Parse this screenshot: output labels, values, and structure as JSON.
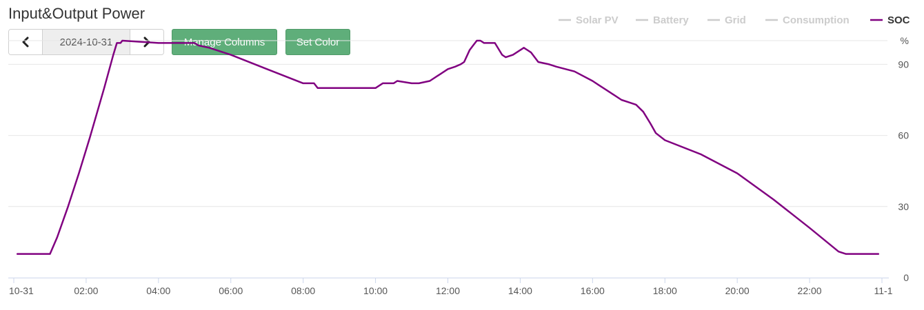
{
  "title": "Input&Output Power",
  "date_nav": {
    "prev_icon": "chevron-left-icon",
    "date": "2024-10-31",
    "next_icon": "chevron-right-icon"
  },
  "buttons": {
    "manage_columns": "Manage Columns",
    "set_color": "Set Color",
    "color": "#5fae7a"
  },
  "chart_data": {
    "type": "line",
    "title": "",
    "xlabel": "",
    "ylabel": "%",
    "ylim": [
      0,
      100
    ],
    "y_ticks": [
      0,
      30,
      60,
      90
    ],
    "x_tick_labels": [
      "10-31",
      "02:00",
      "04:00",
      "06:00",
      "08:00",
      "10:00",
      "12:00",
      "14:00",
      "16:00",
      "18:00",
      "20:00",
      "22:00",
      "11-1"
    ],
    "x_range_hours": [
      0,
      24
    ],
    "grid": "horizontal",
    "legend_position": "top-right",
    "legend": [
      {
        "name": "Solar PV",
        "color": "#cccccc",
        "active": false
      },
      {
        "name": "Battery",
        "color": "#cccccc",
        "active": false
      },
      {
        "name": "Grid",
        "color": "#cccccc",
        "active": false
      },
      {
        "name": "Consumption",
        "color": "#cccccc",
        "active": false
      },
      {
        "name": "SOC",
        "color": "#800080",
        "active": true
      }
    ],
    "series": [
      {
        "name": "SOC",
        "color": "#800080",
        "x": [
          0.1,
          1.0,
          1.2,
          1.5,
          1.8,
          2.1,
          2.5,
          2.75,
          2.85,
          2.95,
          3.0,
          4.0,
          5.0,
          5.1,
          5.4,
          6.0,
          7.0,
          8.0,
          8.3,
          8.4,
          9.5,
          9.8,
          10.0,
          10.2,
          10.5,
          10.6,
          11.0,
          11.2,
          11.5,
          12.0,
          12.2,
          12.35,
          12.45,
          12.6,
          12.7,
          12.8,
          12.9,
          13.0,
          13.2,
          13.3,
          13.5,
          13.6,
          13.8,
          14.1,
          14.3,
          14.5,
          14.8,
          15.0,
          15.5,
          16.0,
          16.2,
          16.5,
          16.8,
          17.0,
          17.2,
          17.4,
          17.6,
          17.75,
          18.0,
          19.0,
          20.0,
          21.0,
          22.0,
          22.8,
          23.0,
          23.9
        ],
        "values": [
          10,
          10,
          17,
          30,
          44,
          59,
          80,
          94,
          99,
          99,
          100,
          99,
          99,
          98,
          97,
          94,
          88,
          82,
          82,
          80,
          80,
          80,
          80,
          82,
          82,
          83,
          82,
          82,
          83,
          88,
          89,
          90,
          91,
          96,
          98,
          100,
          100,
          99,
          99,
          99,
          94,
          93,
          94,
          97,
          95,
          91,
          90,
          89,
          87,
          83,
          81,
          78,
          75,
          74,
          73,
          70,
          65,
          61,
          58,
          52,
          44,
          33,
          21,
          11,
          10,
          10
        ]
      }
    ]
  }
}
